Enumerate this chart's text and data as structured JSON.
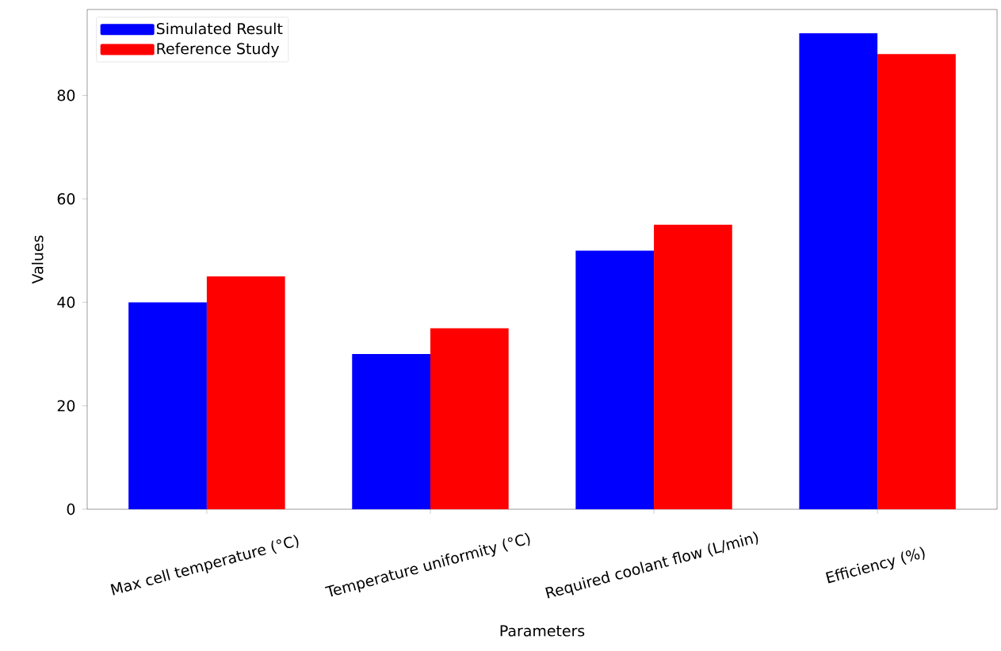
{
  "chart_data": {
    "type": "bar",
    "xlabel": "Parameters",
    "ylabel": "Values",
    "categories": [
      "Max cell temperature (°C)",
      "Temperature uniformity (°C)",
      "Required coolant flow (L/min)",
      "Efficiency (%)"
    ],
    "series": [
      {
        "name": "Simulated Result",
        "color": "#0000ff",
        "values": [
          40,
          30,
          50,
          92
        ]
      },
      {
        "name": "Reference Study",
        "color": "#ff0000",
        "values": [
          45,
          35,
          55,
          88
        ]
      }
    ],
    "ylim": [
      0,
      96.6
    ],
    "yticks": [
      0,
      20,
      40,
      60,
      80
    ],
    "legend": "top left"
  }
}
